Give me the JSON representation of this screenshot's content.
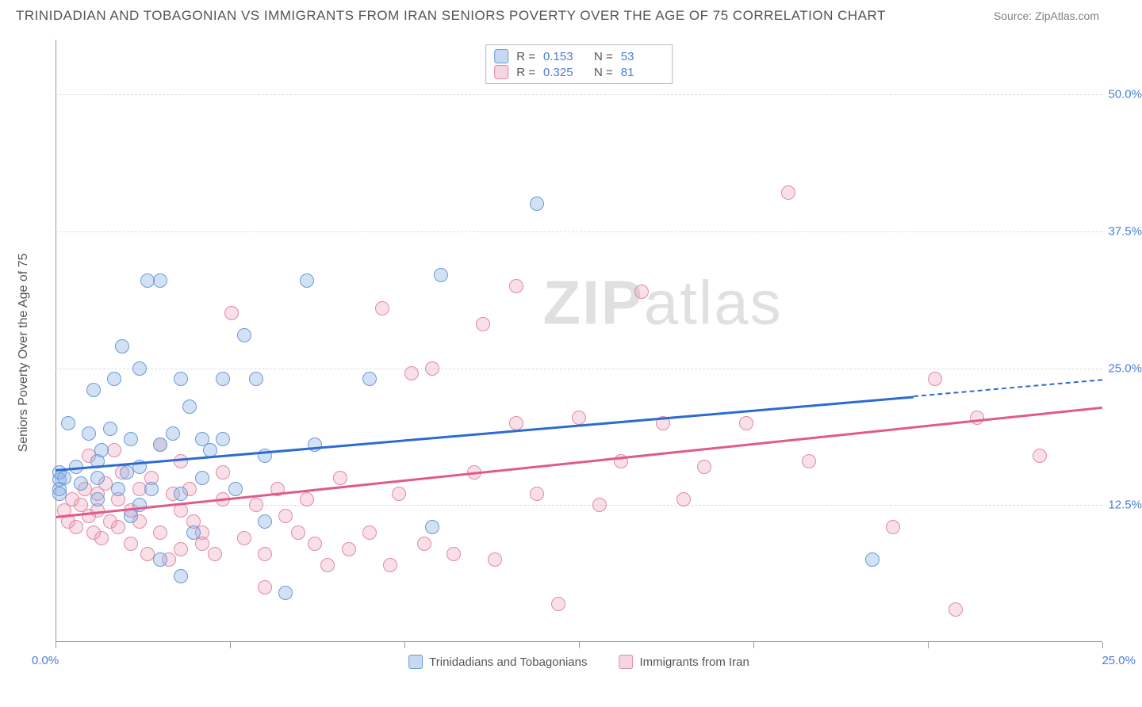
{
  "header": {
    "title": "TRINIDADIAN AND TOBAGONIAN VS IMMIGRANTS FROM IRAN SENIORS POVERTY OVER THE AGE OF 75 CORRELATION CHART",
    "source": "Source: ZipAtlas.com"
  },
  "chart": {
    "type": "scatter",
    "ylabel": "Seniors Poverty Over the Age of 75",
    "watermark_bold": "ZIP",
    "watermark_rest": "atlas",
    "background_color": "#ffffff",
    "grid_color": "#dddddd",
    "axis_color": "#999999",
    "label_color": "#555555",
    "tick_color": "#4a7dd6",
    "xlim": [
      0,
      25
    ],
    "ylim": [
      0,
      55
    ],
    "yticks": [
      12.5,
      25.0,
      37.5,
      50.0
    ],
    "ytick_labels": [
      "12.5%",
      "25.0%",
      "37.5%",
      "50.0%"
    ],
    "xtick_positions": [
      0,
      4.17,
      8.33,
      12.5,
      16.67,
      20.83,
      25
    ],
    "x_left_label": "0.0%",
    "x_right_label": "25.0%",
    "series": [
      {
        "key": "a",
        "name": "Trinidadians and Tobagonians",
        "fill": "rgba(130,170,225,0.35)",
        "stroke": "#6a9bd8",
        "line_color": "#2e6bd0",
        "R": "0.153",
        "N": "53",
        "trend": {
          "x1": 0,
          "y1": 15.8,
          "x2": 20.5,
          "y2": 22.5,
          "dash_to_x": 25,
          "dash_to_y": 24.0
        },
        "points": [
          [
            0.1,
            15.5
          ],
          [
            0.1,
            14.8
          ],
          [
            0.1,
            14.0
          ],
          [
            0.1,
            13.5
          ],
          [
            0.2,
            15.0
          ],
          [
            0.3,
            20.0
          ],
          [
            0.5,
            16.0
          ],
          [
            0.6,
            14.5
          ],
          [
            0.8,
            19.0
          ],
          [
            0.9,
            23.0
          ],
          [
            1.0,
            16.5
          ],
          [
            1.0,
            15.0
          ],
          [
            1.0,
            13.0
          ],
          [
            1.1,
            17.5
          ],
          [
            1.3,
            19.5
          ],
          [
            1.4,
            24.0
          ],
          [
            1.5,
            14.0
          ],
          [
            1.6,
            27.0
          ],
          [
            1.7,
            15.5
          ],
          [
            1.8,
            11.5
          ],
          [
            1.8,
            18.5
          ],
          [
            2.0,
            12.5
          ],
          [
            2.0,
            16.0
          ],
          [
            2.0,
            25.0
          ],
          [
            2.2,
            33.0
          ],
          [
            2.3,
            14.0
          ],
          [
            2.5,
            7.5
          ],
          [
            2.5,
            18.0
          ],
          [
            2.8,
            19.0
          ],
          [
            3.0,
            13.5
          ],
          [
            3.0,
            24.0
          ],
          [
            3.0,
            6.0
          ],
          [
            3.2,
            21.5
          ],
          [
            3.3,
            10.0
          ],
          [
            3.5,
            18.5
          ],
          [
            3.5,
            15.0
          ],
          [
            3.7,
            17.5
          ],
          [
            4.0,
            18.5
          ],
          [
            4.0,
            24.0
          ],
          [
            4.3,
            14.0
          ],
          [
            4.5,
            28.0
          ],
          [
            4.8,
            24.0
          ],
          [
            5.0,
            11.0
          ],
          [
            5.0,
            17.0
          ],
          [
            5.5,
            4.5
          ],
          [
            6.0,
            33.0
          ],
          [
            6.2,
            18.0
          ],
          [
            7.5,
            24.0
          ],
          [
            9.2,
            33.5
          ],
          [
            11.5,
            40.0
          ],
          [
            9.0,
            10.5
          ],
          [
            19.5,
            7.5
          ],
          [
            2.5,
            33.0
          ]
        ]
      },
      {
        "key": "b",
        "name": "Immigrants from Iran",
        "fill": "rgba(235,150,175,0.30)",
        "stroke": "#e28aa5",
        "line_color": "#e05a8a",
        "R": "0.325",
        "N": "81",
        "trend": {
          "x1": 0,
          "y1": 11.5,
          "x2": 25,
          "y2": 21.5
        },
        "points": [
          [
            0.2,
            12.0
          ],
          [
            0.3,
            11.0
          ],
          [
            0.4,
            13.0
          ],
          [
            0.5,
            10.5
          ],
          [
            0.6,
            12.5
          ],
          [
            0.7,
            14.0
          ],
          [
            0.8,
            11.5
          ],
          [
            0.8,
            17.0
          ],
          [
            0.9,
            10.0
          ],
          [
            1.0,
            13.5
          ],
          [
            1.0,
            12.0
          ],
          [
            1.1,
            9.5
          ],
          [
            1.2,
            14.5
          ],
          [
            1.3,
            11.0
          ],
          [
            1.4,
            17.5
          ],
          [
            1.5,
            10.5
          ],
          [
            1.5,
            13.0
          ],
          [
            1.6,
            15.5
          ],
          [
            1.8,
            12.0
          ],
          [
            1.8,
            9.0
          ],
          [
            2.0,
            14.0
          ],
          [
            2.0,
            11.0
          ],
          [
            2.2,
            8.0
          ],
          [
            2.3,
            15.0
          ],
          [
            2.5,
            10.0
          ],
          [
            2.5,
            18.0
          ],
          [
            2.7,
            7.5
          ],
          [
            2.8,
            13.5
          ],
          [
            3.0,
            12.0
          ],
          [
            3.0,
            16.5
          ],
          [
            3.0,
            8.5
          ],
          [
            3.2,
            14.0
          ],
          [
            3.3,
            11.0
          ],
          [
            3.5,
            10.0
          ],
          [
            3.5,
            9.0
          ],
          [
            3.8,
            8.0
          ],
          [
            4.0,
            13.0
          ],
          [
            4.0,
            15.5
          ],
          [
            4.2,
            30.0
          ],
          [
            4.5,
            9.5
          ],
          [
            4.8,
            12.5
          ],
          [
            5.0,
            8.0
          ],
          [
            5.0,
            5.0
          ],
          [
            5.3,
            14.0
          ],
          [
            5.5,
            11.5
          ],
          [
            5.8,
            10.0
          ],
          [
            6.0,
            13.0
          ],
          [
            6.2,
            9.0
          ],
          [
            6.5,
            7.0
          ],
          [
            6.8,
            15.0
          ],
          [
            7.0,
            8.5
          ],
          [
            7.5,
            10.0
          ],
          [
            7.8,
            30.5
          ],
          [
            8.0,
            7.0
          ],
          [
            8.2,
            13.5
          ],
          [
            8.5,
            24.5
          ],
          [
            8.8,
            9.0
          ],
          [
            9.0,
            25.0
          ],
          [
            9.5,
            8.0
          ],
          [
            10.0,
            15.5
          ],
          [
            10.2,
            29.0
          ],
          [
            10.5,
            7.5
          ],
          [
            11.0,
            20.0
          ],
          [
            11.0,
            32.5
          ],
          [
            11.5,
            13.5
          ],
          [
            12.0,
            3.5
          ],
          [
            12.5,
            20.5
          ],
          [
            13.0,
            12.5
          ],
          [
            13.5,
            16.5
          ],
          [
            14.0,
            32.0
          ],
          [
            14.5,
            20.0
          ],
          [
            15.0,
            13.0
          ],
          [
            15.5,
            16.0
          ],
          [
            16.5,
            20.0
          ],
          [
            17.5,
            41.0
          ],
          [
            18.0,
            16.5
          ],
          [
            20.0,
            10.5
          ],
          [
            21.0,
            24.0
          ],
          [
            22.0,
            20.5
          ],
          [
            21.5,
            3.0
          ],
          [
            23.5,
            17.0
          ]
        ]
      }
    ],
    "stat_legend_labels": {
      "R": "R  =",
      "N": "N  ="
    },
    "marker_size": 18,
    "line_width": 2.5
  }
}
